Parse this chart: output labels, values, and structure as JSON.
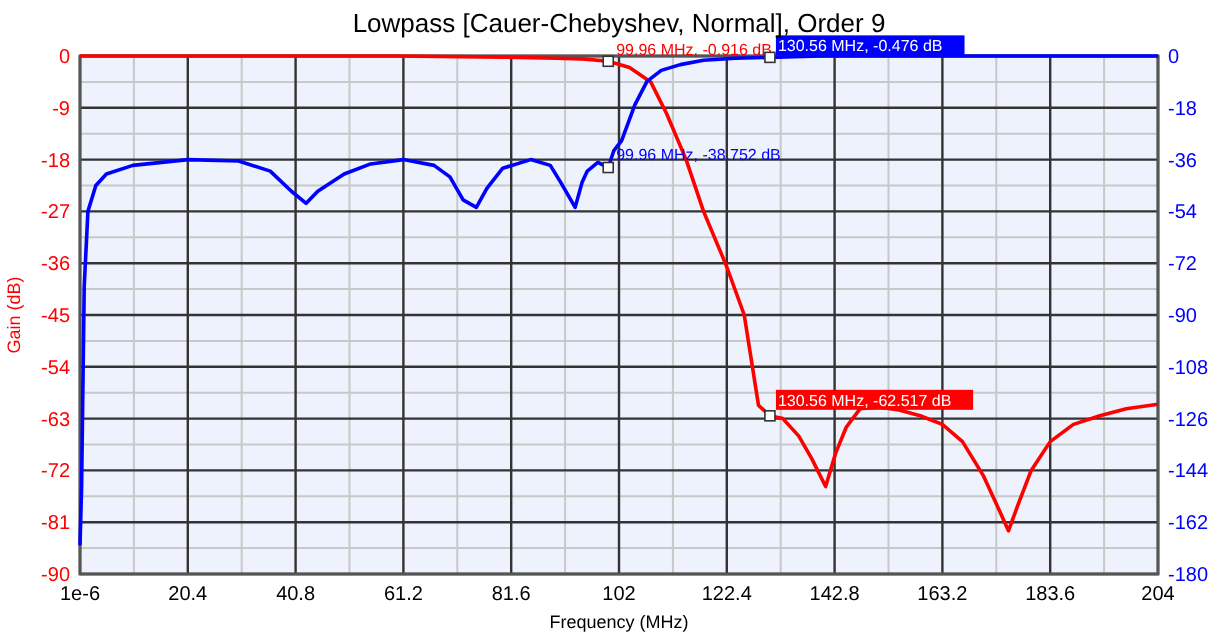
{
  "chart_data": {
    "type": "line",
    "title": "Lowpass [Cauer-Chebyshev, Normal], Order 9",
    "xlabel": "Frequency (MHz)",
    "ylabel": "Gain (dB)",
    "xlim": [
      1e-06,
      204
    ],
    "xticks": [
      {
        "value": 1e-06,
        "label": "1e-6"
      },
      20.4,
      40.8,
      61.2,
      81.6,
      102,
      122.4,
      142.8,
      163.2,
      183.6,
      204
    ],
    "ylim": [
      -90,
      0
    ],
    "yticks": [
      0,
      -9,
      -18,
      -27,
      -36,
      -45,
      -54,
      -63,
      -72,
      -81,
      -90
    ],
    "y2lim": [
      -180,
      0
    ],
    "y2ticks": [
      0,
      -18,
      -36,
      -54,
      -72,
      -90,
      -108,
      -126,
      -144,
      -162,
      -180
    ],
    "grid": true,
    "marker": "none",
    "line_style": "solid",
    "series": [
      {
        "color": "#ff0000",
        "x": [
          1e-06,
          20,
          40,
          60,
          80,
          90,
          95,
          99.96,
          104,
          108,
          111,
          114.7,
          118,
          122.3,
          125.7,
          128.4,
          130.56,
          133,
          136,
          138.5,
          141.1,
          143,
          145,
          147.6,
          151,
          155,
          159,
          163.2,
          167,
          171,
          174,
          175.7,
          177.5,
          180,
          183.6,
          188,
          193,
          198,
          204
        ],
        "values": [
          0,
          0,
          0,
          0,
          -0.2,
          -0.4,
          -0.5,
          -0.916,
          -2,
          -4.5,
          -10,
          -18,
          -27,
          -36.4,
          -45,
          -60.7,
          -62.517,
          -63,
          -66,
          -70,
          -74.8,
          -69,
          -64.5,
          -61.3,
          -61,
          -61.5,
          -62.5,
          -64,
          -67,
          -73,
          -79,
          -82.5,
          -78,
          -72,
          -67,
          -64,
          -62.5,
          -61.3,
          -60.5
        ]
      },
      {
        "color": "#0000ff",
        "axis": "y2",
        "x": [
          1e-06,
          0.3,
          0.8,
          1.5,
          3,
          5,
          10,
          20.4,
          30,
          36,
          40,
          42.8,
          45,
          50,
          55,
          61.2,
          67,
          70,
          72.5,
          75,
          77,
          80,
          85.3,
          89,
          91,
          93.7,
          95,
          96,
          98,
          99.96,
          101,
          102.5,
          105,
          107.3,
          110,
          113.6,
          118,
          124,
          130.56,
          140,
          160,
          180,
          204
        ],
        "values": [
          -170,
          -150,
          -80,
          -54,
          -45,
          -41,
          -38,
          -36,
          -36.5,
          -40,
          -47,
          -51.2,
          -47,
          -41,
          -37.5,
          -36,
          -38,
          -42,
          -50,
          -52.6,
          -46,
          -39,
          -36,
          -38,
          -44,
          -52.6,
          -44,
          -40,
          -37,
          -38.752,
          -33,
          -29.4,
          -17,
          -8.8,
          -5,
          -3,
          -1.5,
          -0.8,
          -0.476,
          0,
          0,
          0,
          0
        ]
      }
    ],
    "annotations": [
      {
        "text": "99.96 MHz, -0.916 dB",
        "x": 99.96,
        "y": -0.916
      },
      "130.56 MHz, -0.476 dB",
      "99.96 MHz, -38.752 dB",
      {
        "text": "130.56 MHz, -62.517 dB",
        "x": 130.56,
        "y": -62.517
      }
    ]
  }
}
